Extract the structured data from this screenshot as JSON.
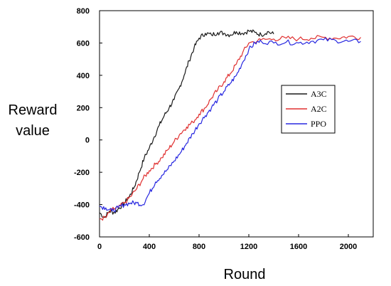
{
  "chart_data": {
    "type": "line",
    "xlabel": "Round",
    "ylabel": [
      "Reward",
      "value"
    ],
    "xlim": [
      0,
      2200
    ],
    "ylim": [
      -600,
      800
    ],
    "xticks": [
      0,
      400,
      800,
      1200,
      1600,
      2000
    ],
    "yticks": [
      -600,
      -400,
      -200,
      0,
      200,
      400,
      600,
      800
    ],
    "legend_position": "right",
    "series": [
      {
        "name": "A3C",
        "color": "#1a1a1a",
        "x": [
          0,
          40,
          80,
          120,
          160,
          200,
          240,
          280,
          320,
          360,
          400,
          440,
          480,
          520,
          560,
          600,
          640,
          680,
          720,
          760,
          800,
          850,
          900,
          950,
          1000,
          1050,
          1100,
          1150,
          1200,
          1250,
          1300,
          1350,
          1400
        ],
        "y": [
          -450,
          -480,
          -440,
          -450,
          -420,
          -390,
          -350,
          -290,
          -200,
          -110,
          -50,
          20,
          90,
          150,
          200,
          250,
          320,
          400,
          490,
          570,
          630,
          660,
          650,
          665,
          660,
          650,
          670,
          660,
          675,
          665,
          650,
          670,
          655
        ]
      },
      {
        "name": "A2C",
        "color": "#e03030",
        "x": [
          0,
          50,
          100,
          150,
          200,
          250,
          300,
          350,
          400,
          450,
          500,
          550,
          600,
          650,
          700,
          750,
          800,
          850,
          900,
          950,
          1000,
          1050,
          1100,
          1150,
          1200,
          1300,
          1400,
          1500,
          1600,
          1700,
          1800,
          1900,
          2000,
          2100
        ],
        "y": [
          -490,
          -480,
          -430,
          -420,
          -390,
          -350,
          -300,
          -240,
          -190,
          -150,
          -110,
          -60,
          -10,
          40,
          80,
          110,
          160,
          200,
          260,
          310,
          360,
          410,
          470,
          540,
          600,
          620,
          625,
          630,
          625,
          630,
          635,
          630,
          640,
          635
        ]
      },
      {
        "name": "PPO",
        "color": "#2828e0",
        "x": [
          0,
          50,
          100,
          150,
          200,
          250,
          300,
          350,
          400,
          450,
          500,
          550,
          600,
          650,
          700,
          750,
          800,
          850,
          900,
          950,
          1000,
          1050,
          1100,
          1150,
          1200,
          1250,
          1300,
          1400,
          1500,
          1600,
          1700,
          1800,
          1900,
          2000,
          2100
        ],
        "y": [
          -410,
          -420,
          -440,
          -420,
          -400,
          -390,
          -390,
          -400,
          -330,
          -260,
          -220,
          -180,
          -130,
          -80,
          -20,
          40,
          100,
          150,
          200,
          250,
          300,
          350,
          400,
          480,
          560,
          600,
          610,
          600,
          605,
          600,
          610,
          620,
          615,
          610,
          610
        ]
      }
    ]
  }
}
